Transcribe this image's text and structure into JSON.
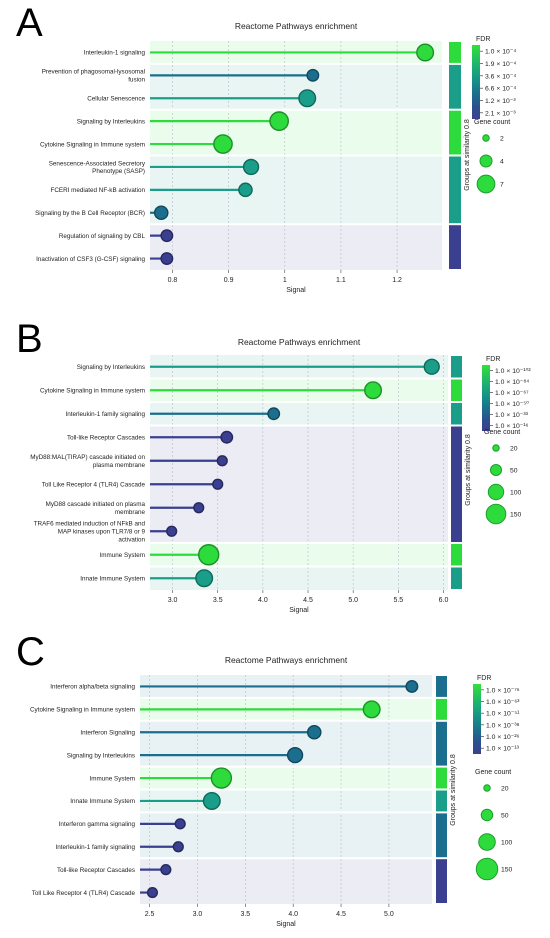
{
  "colors": {
    "c1": "#2ddc3c",
    "c2": "#1a9e8a",
    "c3": "#1b6e8d",
    "c4": "#3b3f8f"
  },
  "chart_data": [
    {
      "panel": "A",
      "type": "lollipop",
      "title": "Reactome Pathways enrichment",
      "xlabel": "Signal",
      "xlim": [
        0.76,
        1.28
      ],
      "xticks": [
        0.8,
        0.9,
        1.0,
        1.1,
        1.2
      ],
      "xtick_labels": [
        "0.8",
        "0.9",
        "1",
        "1.1",
        "1.2"
      ],
      "fdr_title": "FDR",
      "fdr_labels": [
        "1.0 × 10⁻⁴",
        "1.9 × 10⁻⁴",
        "3.6 × 10⁻⁴",
        "6.6 × 10⁻⁴",
        "1.2 × 10⁻³",
        "2.1 × 10⁻³"
      ],
      "gene_title": "Gene count",
      "gene_values": [
        2,
        4,
        7
      ],
      "groups_label": "Groups at similarity 0.8",
      "groups": [
        {
          "start": 0,
          "end": 0,
          "color": "#2ddc3c"
        },
        {
          "start": 1,
          "end": 2,
          "color": "#1a9e8a"
        },
        {
          "start": 3,
          "end": 4,
          "color": "#2ddc3c"
        },
        {
          "start": 5,
          "end": 7,
          "color": "#1a9e8a"
        },
        {
          "start": 8,
          "end": 9,
          "color": "#3b3f8f"
        }
      ],
      "rows": [
        {
          "label": "Interleukin-1 signaling",
          "signal": 1.25,
          "color": "#2ddc3c",
          "size": 6
        },
        {
          "label": "Prevention of phagosomal-lysosomal\nfusion",
          "signal": 1.05,
          "color": "#1b6e8d",
          "size": 3
        },
        {
          "label": "Cellular Senescence",
          "signal": 1.04,
          "color": "#1a9e8a",
          "size": 6
        },
        {
          "label": "Signaling by Interleukins",
          "signal": 0.99,
          "color": "#2ddc3c",
          "size": 7
        },
        {
          "label": "Cytokine Signaling in Immune system",
          "signal": 0.89,
          "color": "#2ddc3c",
          "size": 7
        },
        {
          "label": "Senescence-Associated Secretory\nPhenotype (SASP)",
          "signal": 0.94,
          "color": "#1a9e8a",
          "size": 5
        },
        {
          "label": "FCERI mediated NF-kB activation",
          "signal": 0.93,
          "color": "#1a9e8a",
          "size": 4
        },
        {
          "label": "Signaling by the B Cell Receptor (BCR)",
          "signal": 0.78,
          "color": "#1b6e8d",
          "size": 4
        },
        {
          "label": "Regulation of signaling by CBL",
          "signal": 0.79,
          "color": "#3b3f8f",
          "size": 3
        },
        {
          "label": "Inactivation of CSF3 (G-CSF) signaling",
          "signal": 0.79,
          "color": "#3b3f8f",
          "size": 3
        }
      ]
    },
    {
      "panel": "B",
      "type": "lollipop",
      "title": "Reactome Pathways enrichment",
      "xlabel": "Signal",
      "xlim": [
        2.75,
        6.05
      ],
      "xticks": [
        3.0,
        3.5,
        4.0,
        4.5,
        5.0,
        5.5,
        6.0
      ],
      "xtick_labels": [
        "3.0",
        "3.5",
        "4.0",
        "4.5",
        "5.0",
        "5.5",
        "6.0"
      ],
      "fdr_title": "FDR",
      "fdr_labels": [
        "1.0 × 10⁻¹⁰²",
        "1.0 × 10⁻⁸⁴",
        "1.0 × 10⁻⁶⁷",
        "1.0 × 10⁻⁵⁰",
        "1.0 × 10⁻³³",
        "1.0 × 10⁻¹⁶"
      ],
      "gene_title": "Gene count",
      "gene_values": [
        20,
        50,
        100,
        150
      ],
      "groups_label": "Groups at similarity 0.8",
      "groups": [
        {
          "start": 0,
          "end": 0,
          "color": "#1a9e8a"
        },
        {
          "start": 1,
          "end": 1,
          "color": "#2ddc3c"
        },
        {
          "start": 2,
          "end": 2,
          "color": "#1a9e8a"
        },
        {
          "start": 3,
          "end": 7,
          "color": "#3b3f8f"
        },
        {
          "start": 8,
          "end": 8,
          "color": "#2ddc3c"
        },
        {
          "start": 9,
          "end": 9,
          "color": "#1a9e8a"
        }
      ],
      "rows": [
        {
          "label": "Signaling by Interleukins",
          "signal": 5.87,
          "color": "#1a9e8a",
          "size": 5
        },
        {
          "label": "Cytokine Signaling in Immune system",
          "signal": 5.22,
          "color": "#2ddc3c",
          "size": 6
        },
        {
          "label": "Interleukin-1 family signaling",
          "signal": 4.12,
          "color": "#1b6e8d",
          "size": 3
        },
        {
          "label": "Toll-like Receptor Cascades",
          "signal": 3.6,
          "color": "#3b3f8f",
          "size": 3
        },
        {
          "label": "MyD88:MAL(TIRAP) cascade initiated on\nplasma membrane",
          "signal": 3.55,
          "color": "#3b3f8f",
          "size": 2
        },
        {
          "label": "Toll Like Receptor 4 (TLR4) Cascade",
          "signal": 3.5,
          "color": "#3b3f8f",
          "size": 2
        },
        {
          "label": "MyD88 cascade initiated on plasma\nmembrane",
          "signal": 3.29,
          "color": "#3b3f8f",
          "size": 2
        },
        {
          "label": "TRAF6 mediated induction of NFkB and\nMAP kinases upon TLR7/8 or 9\nactivation",
          "signal": 2.99,
          "color": "#3b3f8f",
          "size": 2
        },
        {
          "label": "Immune System",
          "signal": 3.4,
          "color": "#2ddc3c",
          "size": 8
        },
        {
          "label": "Innate Immune System",
          "signal": 3.35,
          "color": "#1a9e8a",
          "size": 6
        }
      ]
    },
    {
      "panel": "C",
      "type": "lollipop",
      "title": "Reactome Pathways enrichment",
      "xlabel": "Signal",
      "xlim": [
        2.4,
        5.45
      ],
      "xticks": [
        2.5,
        3.0,
        3.5,
        4.0,
        4.5,
        5.0
      ],
      "xtick_labels": [
        "2.5",
        "3.0",
        "3.5",
        "4.0",
        "4.5",
        "5.0"
      ],
      "fdr_title": "FDR",
      "fdr_labels": [
        "1.0 × 10⁻⁷⁶",
        "1.0 × 10⁻⁶³",
        "1.0 × 10⁻⁵¹",
        "1.0 × 10⁻³⁸",
        "1.0 × 10⁻²⁶",
        "1.0 × 10⁻¹³"
      ],
      "gene_title": "Gene count",
      "gene_values": [
        20,
        50,
        100,
        150
      ],
      "groups_label": "Groups at similarity 0.8",
      "groups": [
        {
          "start": 0,
          "end": 0,
          "color": "#1b6e8d"
        },
        {
          "start": 1,
          "end": 1,
          "color": "#2ddc3c"
        },
        {
          "start": 2,
          "end": 3,
          "color": "#1b6e8d"
        },
        {
          "start": 4,
          "end": 4,
          "color": "#2ddc3c"
        },
        {
          "start": 5,
          "end": 5,
          "color": "#1a9e8a"
        },
        {
          "start": 6,
          "end": 7,
          "color": "#1b6e8d"
        },
        {
          "start": 8,
          "end": 9,
          "color": "#3b3f8f"
        }
      ],
      "rows": [
        {
          "label": "Interferon alpha/beta signaling",
          "signal": 5.24,
          "color": "#1b6e8d",
          "size": 3
        },
        {
          "label": "Cytokine Signaling in Immune system",
          "signal": 4.82,
          "color": "#2ddc3c",
          "size": 6
        },
        {
          "label": "Interferon Signaling",
          "signal": 4.22,
          "color": "#1b6e8d",
          "size": 4
        },
        {
          "label": "Signaling by Interleukins",
          "signal": 4.02,
          "color": "#1b6e8d",
          "size": 5
        },
        {
          "label": "Immune System",
          "signal": 3.25,
          "color": "#2ddc3c",
          "size": 8
        },
        {
          "label": "Innate Immune System",
          "signal": 3.15,
          "color": "#1a9e8a",
          "size": 6
        },
        {
          "label": "Interferon gamma signaling",
          "signal": 2.82,
          "color": "#3b3f8f",
          "size": 2
        },
        {
          "label": "Interleukin-1 family signaling",
          "signal": 2.8,
          "color": "#3b3f8f",
          "size": 2
        },
        {
          "label": "Toll-like Receptor Cascades",
          "signal": 2.67,
          "color": "#3b3f8f",
          "size": 2
        },
        {
          "label": "Toll Like Receptor 4 (TLR4) Cascade",
          "signal": 2.53,
          "color": "#3b3f8f",
          "size": 2
        }
      ]
    }
  ]
}
